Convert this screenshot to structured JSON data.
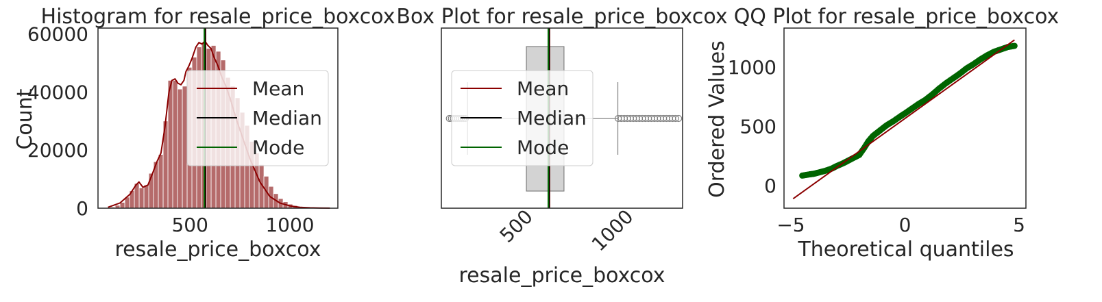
{
  "charts": [
    {
      "type": "bar",
      "title": "Histogram for resale_price_boxcox",
      "xlabel": "resale_price_boxcox",
      "ylabel": "Count",
      "xlim": [
        40,
        1240
      ],
      "ylim": [
        0,
        62000
      ],
      "xticks": [
        500,
        1000
      ],
      "yticks": [
        0,
        20000,
        40000,
        60000
      ],
      "bar_color": "#b56b6b",
      "kde_color": "#8b0000",
      "bin_width": 24,
      "bins_x": [
        90,
        114,
        138,
        162,
        186,
        210,
        234,
        258,
        282,
        306,
        330,
        354,
        378,
        402,
        426,
        450,
        474,
        498,
        522,
        546,
        570,
        594,
        618,
        642,
        666,
        690,
        714,
        738,
        762,
        786,
        810,
        834,
        858,
        882,
        906,
        930,
        954,
        978,
        1002,
        1026,
        1050,
        1074,
        1098,
        1122,
        1146,
        1170,
        1194
      ],
      "bins_y": [
        200,
        400,
        1000,
        2000,
        3800,
        6000,
        8500,
        7000,
        8000,
        12000,
        16000,
        18500,
        30000,
        44000,
        44000,
        41000,
        42000,
        48500,
        52000,
        55500,
        57000,
        55000,
        56000,
        54000,
        51000,
        45000,
        42000,
        38000,
        33000,
        28500,
        23000,
        19000,
        15000,
        11000,
        7500,
        5000,
        3300,
        2200,
        1400,
        900,
        600,
        400,
        250,
        150,
        100,
        80,
        60
      ],
      "kde_x": [
        90,
        150,
        200,
        230,
        245,
        265,
        290,
        310,
        335,
        355,
        375,
        395,
        410,
        425,
        440,
        455,
        470,
        480,
        495,
        510,
        530,
        545,
        560,
        575,
        590,
        605,
        620,
        640,
        660,
        680,
        700,
        730,
        760,
        800,
        850,
        900,
        950,
        1000,
        1050,
        1100,
        1150,
        1200
      ],
      "kde_y": [
        300,
        1800,
        4800,
        8000,
        9000,
        7200,
        8000,
        11500,
        16000,
        19000,
        28000,
        40000,
        44000,
        44500,
        43000,
        42500,
        44000,
        47000,
        49000,
        51500,
        55500,
        57000,
        56500,
        57500,
        56000,
        55000,
        52000,
        49000,
        45000,
        42000,
        38000,
        31000,
        25000,
        17000,
        9000,
        4000,
        1800,
        800,
        300,
        150,
        60,
        20
      ],
      "mean": 578,
      "median": 576,
      "mode": 572,
      "legend": {
        "position": "right",
        "entries": [
          {
            "label": "Mean",
            "color": "#8b0000"
          },
          {
            "label": "Median",
            "color": "#000000"
          },
          {
            "label": "Mode",
            "color": "#006400"
          }
        ]
      }
    },
    {
      "type": "box",
      "title": "Box Plot for resale_price_boxcox",
      "xlabel": "resale_price_boxcox",
      "xlim": [
        40,
        1240
      ],
      "xticks": [
        500,
        1000
      ],
      "whisker_low": 170,
      "q1": 463,
      "median": 576,
      "q3": 650,
      "whisker_high": 918,
      "outliers_low": [
        80,
        90,
        100,
        110,
        120,
        130,
        140,
        150,
        160
      ],
      "outliers_high": [
        920,
        935,
        950,
        965,
        980,
        995,
        1010,
        1025,
        1040,
        1055,
        1070,
        1085,
        1100,
        1115,
        1130,
        1145,
        1160,
        1175,
        1190,
        1205,
        1220
      ],
      "mean": 578,
      "median_line": 576,
      "mode": 572,
      "box_color": "#d3d3d3",
      "legend": {
        "position": "left",
        "entries": [
          {
            "label": "Mean",
            "color": "#8b0000"
          },
          {
            "label": "Median",
            "color": "#000000"
          },
          {
            "label": "Mode",
            "color": "#006400"
          }
        ]
      }
    },
    {
      "type": "scatter",
      "title": "QQ Plot for resale_price_boxcox",
      "xlabel": "Theoretical quantiles",
      "ylabel": "Ordered Values",
      "xlim": [
        -5.3,
        5.3
      ],
      "ylim": [
        -190,
        1330
      ],
      "xticks": [
        -5,
        0,
        5
      ],
      "xtick_labels": [
        "−5",
        "0",
        "5"
      ],
      "yticks": [
        0,
        500,
        1000
      ],
      "point_color": "#006400",
      "fit_color": "#8b0000",
      "fit_line": [
        [
          -4.9,
          -110
        ],
        [
          4.8,
          1230
        ]
      ],
      "points": [
        [
          -4.5,
          85
        ],
        [
          -4.2,
          95
        ],
        [
          -4.0,
          100
        ],
        [
          -3.8,
          110
        ],
        [
          -3.5,
          125
        ],
        [
          -3.2,
          145
        ],
        [
          -3.0,
          165
        ],
        [
          -2.7,
          190
        ],
        [
          -2.5,
          210
        ],
        [
          -2.2,
          240
        ],
        [
          -2.0,
          260
        ],
        [
          -1.8,
          315
        ],
        [
          -1.6,
          375
        ],
        [
          -1.4,
          420
        ],
        [
          -1.2,
          450
        ],
        [
          -1.0,
          480
        ],
        [
          -0.8,
          510
        ],
        [
          -0.5,
          545
        ],
        [
          -0.2,
          585
        ],
        [
          0.0,
          610
        ],
        [
          0.3,
          650
        ],
        [
          0.6,
          690
        ],
        [
          0.9,
          725
        ],
        [
          1.2,
          770
        ],
        [
          1.5,
          820
        ],
        [
          1.8,
          865
        ],
        [
          2.1,
          905
        ],
        [
          2.4,
          945
        ],
        [
          2.7,
          990
        ],
        [
          3.0,
          1025
        ],
        [
          3.3,
          1065
        ],
        [
          3.6,
          1100
        ],
        [
          3.9,
          1130
        ],
        [
          4.2,
          1150
        ],
        [
          4.5,
          1170
        ],
        [
          4.8,
          1180
        ]
      ]
    }
  ]
}
